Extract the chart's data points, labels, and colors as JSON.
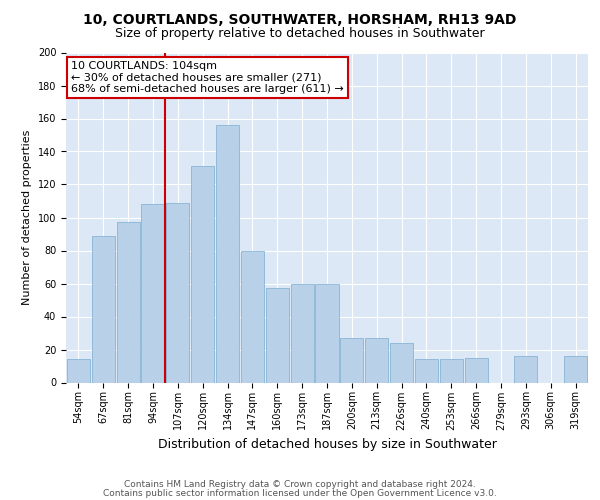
{
  "title": "10, COURTLANDS, SOUTHWATER, HORSHAM, RH13 9AD",
  "subtitle": "Size of property relative to detached houses in Southwater",
  "xlabel": "Distribution of detached houses by size in Southwater",
  "ylabel": "Number of detached properties",
  "categories": [
    "54sqm",
    "67sqm",
    "81sqm",
    "94sqm",
    "107sqm",
    "120sqm",
    "134sqm",
    "147sqm",
    "160sqm",
    "173sqm",
    "187sqm",
    "200sqm",
    "213sqm",
    "226sqm",
    "240sqm",
    "253sqm",
    "266sqm",
    "279sqm",
    "293sqm",
    "306sqm",
    "319sqm"
  ],
  "values": [
    14,
    89,
    97,
    108,
    109,
    131,
    156,
    80,
    57,
    60,
    60,
    27,
    27,
    24,
    14,
    14,
    15,
    0,
    16,
    0,
    16
  ],
  "bar_color": "#b8d0e8",
  "bar_edge_color": "#7aadd0",
  "vline_x_index": 4,
  "vline_color": "#cc0000",
  "annotation_text": "10 COURTLANDS: 104sqm\n← 30% of detached houses are smaller (271)\n68% of semi-detached houses are larger (611) →",
  "annotation_box_color": "#ffffff",
  "annotation_box_edge_color": "#cc0000",
  "footer1": "Contains HM Land Registry data © Crown copyright and database right 2024.",
  "footer2": "Contains public sector information licensed under the Open Government Licence v3.0.",
  "background_color": "#dce8f5",
  "plot_bg_color": "#dce8f5",
  "ylim": [
    0,
    200
  ],
  "yticks": [
    0,
    20,
    40,
    60,
    80,
    100,
    120,
    140,
    160,
    180,
    200
  ],
  "title_fontsize": 10,
  "subtitle_fontsize": 9,
  "xlabel_fontsize": 9,
  "ylabel_fontsize": 8,
  "tick_fontsize": 7,
  "annotation_fontsize": 8,
  "footer_fontsize": 6.5
}
